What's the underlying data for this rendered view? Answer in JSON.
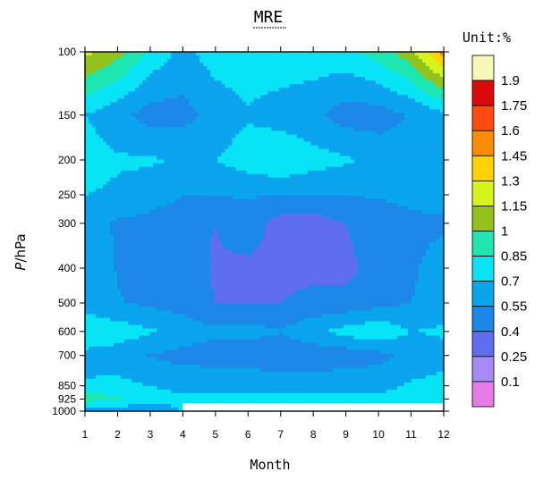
{
  "chart_data": {
    "type": "heatmap",
    "title": "MRE",
    "xlabel": "Month",
    "ylabel_italic": "P",
    "ylabel_rest": "/hPa",
    "unit_label": "Unit:%",
    "x_ticks": [
      "1",
      "2",
      "3",
      "4",
      "5",
      "6",
      "7",
      "8",
      "9",
      "10",
      "11",
      "12"
    ],
    "y_ticks": [
      "100",
      "150",
      "200",
      "250",
      "300",
      "400",
      "500",
      "600",
      "700",
      "850",
      "925",
      "1000"
    ],
    "y_scale": "log",
    "x_range": [
      1,
      12
    ],
    "y_range": [
      1000,
      100
    ],
    "color_levels": [
      "0.1",
      "0.25",
      "0.4",
      "0.55",
      "0.7",
      "0.85",
      "1",
      "1.15",
      "1.3",
      "1.45",
      "1.6",
      "1.75",
      "1.9"
    ],
    "level_colors": [
      "#e67de6",
      "#a78af5",
      "#5f6ef0",
      "#1c88e8",
      "#0aa5ee",
      "#08e4f5",
      "#1ee6b0",
      "#93c21a",
      "#d4f41c",
      "#ffd200",
      "#ff8c00",
      "#ff4b0e",
      "#dc0a0a",
      "#f7f7b7"
    ],
    "data": {
      "months": [
        1,
        2,
        3,
        4,
        5,
        6,
        7,
        8,
        9,
        10,
        11,
        12
      ],
      "levels_hPa": [
        100,
        150,
        200,
        250,
        300,
        400,
        500,
        600,
        700,
        850,
        925,
        1000
      ],
      "values": [
        [
          1.2,
          1.05,
          0.82,
          0.65,
          0.78,
          0.8,
          0.8,
          0.8,
          0.8,
          0.92,
          1.1,
          1.5
        ],
        [
          0.7,
          0.6,
          0.48,
          0.5,
          0.6,
          0.68,
          0.63,
          0.58,
          0.48,
          0.48,
          0.56,
          0.66
        ],
        [
          0.78,
          0.72,
          0.72,
          0.68,
          0.7,
          0.78,
          0.84,
          0.76,
          0.72,
          0.65,
          0.62,
          0.68
        ],
        [
          0.7,
          0.67,
          0.62,
          0.56,
          0.56,
          0.56,
          0.56,
          0.56,
          0.56,
          0.56,
          0.6,
          0.63
        ],
        [
          0.62,
          0.53,
          0.5,
          0.44,
          0.4,
          0.5,
          0.32,
          0.32,
          0.4,
          0.48,
          0.5,
          0.52
        ],
        [
          0.68,
          0.54,
          0.5,
          0.48,
          0.38,
          0.36,
          0.36,
          0.36,
          0.36,
          0.46,
          0.52,
          0.64
        ],
        [
          0.6,
          0.56,
          0.52,
          0.48,
          0.4,
          0.4,
          0.4,
          0.44,
          0.44,
          0.5,
          0.55,
          0.64
        ],
        [
          0.86,
          0.78,
          0.72,
          0.64,
          0.58,
          0.6,
          0.56,
          0.66,
          0.76,
          0.82,
          0.7,
          0.72
        ],
        [
          0.64,
          0.62,
          0.54,
          0.5,
          0.48,
          0.46,
          0.44,
          0.44,
          0.46,
          0.5,
          0.6,
          0.66
        ],
        [
          0.72,
          0.74,
          0.7,
          0.66,
          0.66,
          0.66,
          0.66,
          0.66,
          0.66,
          0.66,
          0.72,
          0.74
        ],
        [
          0.96,
          0.86,
          0.76,
          0.72,
          0.72,
          0.72,
          0.72,
          0.72,
          0.72,
          0.72,
          0.76,
          0.84
        ],
        [
          0.62,
          0.6,
          0.58,
          null,
          null,
          null,
          null,
          null,
          null,
          null,
          null,
          null
        ]
      ]
    }
  }
}
